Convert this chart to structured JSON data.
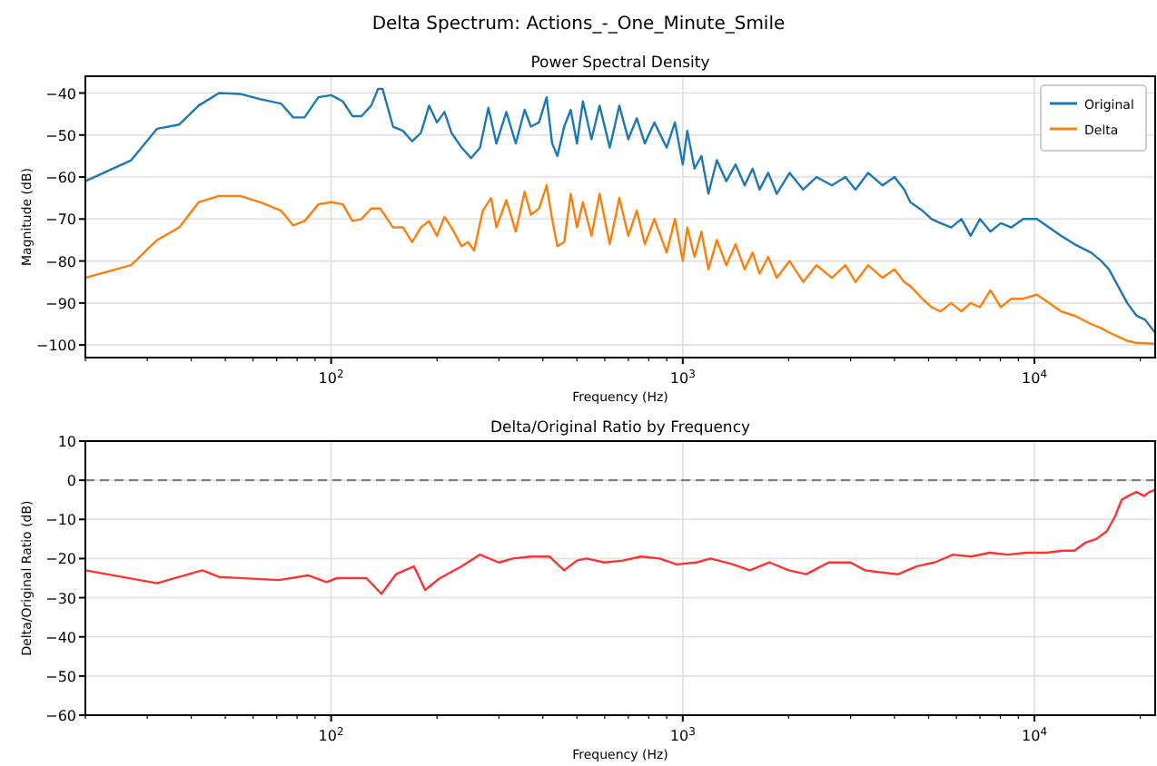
{
  "chart_data": [
    {
      "type": "line",
      "title": "Delta Spectrum: Actions_-_One_Minute_Smile",
      "subtitle": "Power Spectral Density",
      "xlabel": "Frequency (Hz)",
      "ylabel": "Magnitude (dB)",
      "log": "x",
      "grid": true,
      "legend": "top right",
      "xlim": [
        20,
        22050
      ],
      "xticks": [
        {
          "value": 100,
          "label": "10$^{2}$"
        },
        {
          "value": 1000,
          "label": "10$^{3}$"
        },
        {
          "value": 10000,
          "label": "10$^{4}$"
        }
      ],
      "ylim": [
        -103,
        -36
      ],
      "yticks": [
        -100,
        -90,
        -80,
        -70,
        -60,
        -50,
        -40
      ],
      "series": [
        {
          "name": "Original",
          "color": "#1f77b4",
          "x": [
            20,
            27,
            32,
            37,
            42,
            48,
            55,
            63,
            72,
            78,
            84,
            92,
            100,
            108,
            115,
            122,
            130,
            136,
            140,
            150,
            160,
            170,
            180,
            190,
            200,
            210,
            220,
            235,
            250,
            265,
            280,
            295,
            315,
            335,
            355,
            370,
            390,
            410,
            425,
            440,
            460,
            480,
            500,
            520,
            550,
            580,
            620,
            660,
            700,
            740,
            780,
            830,
            900,
            950,
            1000,
            1030,
            1080,
            1130,
            1183,
            1250,
            1330,
            1413,
            1500,
            1580,
            1653,
            1750,
            1850,
            2013,
            2200,
            2400,
            2655,
            2900,
            3100,
            3364,
            3700,
            4000,
            4266,
            4437,
            4800,
            5100,
            5408,
            5800,
            6200,
            6585,
            7000,
            7500,
            8020,
            8600,
            9300,
            10160,
            11000,
            11900,
            13000,
            14500,
            15500,
            16300,
            17300,
            18360,
            19500,
            20650,
            22000
          ],
          "values": [
            -61,
            -56,
            -48.5,
            -47.5,
            -43,
            -40,
            -40.2,
            -41.5,
            -42.5,
            -45.8,
            -45.8,
            -41,
            -40.5,
            -42,
            -45.5,
            -45.5,
            -43,
            -39,
            -39,
            -48,
            -49,
            -51.5,
            -49.5,
            -43,
            -47,
            -44.5,
            -49.5,
            -53,
            -55.5,
            -53,
            -43.5,
            -52,
            -44.5,
            -52,
            -44,
            -48,
            -47,
            -41,
            -52,
            -55,
            -48,
            -44,
            -52,
            -42,
            -51,
            -43,
            -53,
            -43,
            -51,
            -46,
            -52,
            -47,
            -53,
            -47,
            -57,
            -49,
            -58,
            -55,
            -64,
            -56,
            -61,
            -57,
            -62,
            -58,
            -63,
            -59,
            -64,
            -59,
            -63,
            -60,
            -62,
            -60,
            -63,
            -59,
            -62,
            -60,
            -63,
            -66,
            -68,
            -70,
            -71,
            -72,
            -70,
            -74,
            -70,
            -73,
            -71,
            -72,
            -70,
            -70,
            -72,
            -74,
            -76,
            -78,
            -80,
            -82,
            -86,
            -90,
            -93,
            -94,
            -97
          ]
        },
        {
          "name": "Delta",
          "color": "#ff7f0e",
          "x": [
            20,
            27,
            32,
            37,
            42,
            48,
            55,
            63,
            72,
            78,
            84,
            92,
            100,
            108,
            115,
            122,
            130,
            138,
            150,
            160,
            170,
            180,
            190,
            200,
            210,
            220,
            235,
            245,
            255,
            270,
            285,
            295,
            315,
            335,
            355,
            370,
            390,
            410,
            425,
            440,
            460,
            480,
            500,
            520,
            550,
            580,
            620,
            660,
            700,
            740,
            780,
            830,
            900,
            950,
            1000,
            1030,
            1080,
            1130,
            1183,
            1250,
            1330,
            1413,
            1500,
            1580,
            1653,
            1750,
            1850,
            2013,
            2200,
            2400,
            2655,
            2900,
            3100,
            3364,
            3700,
            4000,
            4266,
            4437,
            4800,
            5100,
            5408,
            5800,
            6200,
            6585,
            7000,
            7500,
            8020,
            8600,
            9300,
            10160,
            11000,
            11900,
            13000,
            14500,
            15500,
            16300,
            17300,
            18360,
            19500,
            22000
          ],
          "values": [
            -84,
            -81,
            -75,
            -72,
            -66,
            -64.5,
            -64.5,
            -66,
            -68,
            -71.5,
            -70.5,
            -66.5,
            -66,
            -66.5,
            -70.5,
            -70,
            -67.5,
            -67.5,
            -72,
            -72,
            -75.5,
            -72,
            -70.5,
            -74,
            -69.5,
            -72,
            -76.5,
            -75.5,
            -77.5,
            -68,
            -65,
            -72,
            -65.5,
            -73,
            -63.5,
            -69,
            -67.5,
            -62,
            -70,
            -76.5,
            -75.5,
            -64,
            -72,
            -66,
            -74,
            -64,
            -76,
            -65,
            -74,
            -68,
            -76,
            -70,
            -78,
            -70,
            -80,
            -72,
            -79,
            -73,
            -82,
            -75,
            -81,
            -76,
            -82,
            -78,
            -83,
            -79,
            -84,
            -80,
            -85,
            -81,
            -84,
            -81,
            -85,
            -81,
            -84,
            -82,
            -85,
            -86,
            -89,
            -91,
            -92,
            -90,
            -92,
            -90,
            -91,
            -87,
            -91,
            -89,
            -89,
            -88,
            -90,
            -92,
            -93,
            -95,
            -96,
            -97,
            -98,
            -99,
            -99.5,
            -99.7
          ]
        }
      ]
    },
    {
      "type": "line",
      "title": "Delta/Original Ratio by Frequency",
      "xlabel": "Frequency (Hz)",
      "ylabel": "Delta/Original Ratio (dB)",
      "log": "x",
      "grid": true,
      "xlim": [
        20,
        22050
      ],
      "xticks": [
        {
          "value": 100,
          "label": "10$^{2}$"
        },
        {
          "value": 1000,
          "label": "10$^{3}$"
        },
        {
          "value": 10000,
          "label": "10$^{4}$"
        }
      ],
      "ylim": [
        -60,
        10
      ],
      "yticks": [
        -60,
        -50,
        -40,
        -30,
        -20,
        -10,
        0,
        10
      ],
      "ref_lines": [
        {
          "axis": "y",
          "value": 0,
          "color": "#808080",
          "line_style": "dashed"
        }
      ],
      "series": [
        {
          "color": "#ff3333",
          "x": [
            20,
            32,
            43,
            48,
            71,
            86,
            97,
            104,
            126,
            139,
            153,
            172,
            185,
            204,
            235,
            265,
            300,
            329,
            370,
            418,
            460,
            500,
            532,
            600,
            676,
            760,
            860,
            960,
            1094,
            1200,
            1390,
            1550,
            1767,
            2000,
            2245,
            2600,
            2997,
            3300,
            3631,
            4100,
            4617,
            5200,
            5870,
            6600,
            7463,
            8400,
            9487,
            10800,
            12060,
            13000,
            13920,
            15000,
            16080,
            17000,
            17700,
            18500,
            19500,
            20500,
            21250,
            22000
          ],
          "values": [
            -23,
            -26.3,
            -23,
            -24.7,
            -25.5,
            -24.3,
            -26,
            -25,
            -25,
            -29,
            -24,
            -22,
            -28,
            -25,
            -22,
            -19,
            -21,
            -20,
            -19.5,
            -19.5,
            -23,
            -20.5,
            -20,
            -21,
            -20.5,
            -19.5,
            -20,
            -21.5,
            -21,
            -20,
            -21.5,
            -23,
            -21,
            -23,
            -24,
            -21,
            -21,
            -23,
            -23.5,
            -24,
            -22,
            -21,
            -19,
            -19.5,
            -18.5,
            -19,
            -18.5,
            -18.5,
            -18,
            -18,
            -16,
            -15,
            -13,
            -9,
            -5,
            -4,
            -3,
            -4,
            -3,
            -2.5
          ]
        }
      ]
    }
  ]
}
